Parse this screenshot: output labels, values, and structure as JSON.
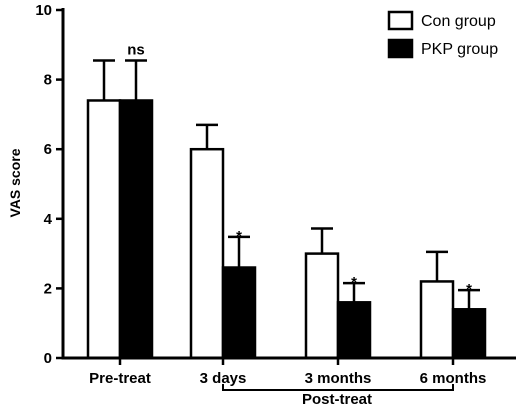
{
  "chart_data": {
    "type": "bar",
    "categories": [
      "Pre-treat",
      "3 days",
      "3 months",
      "6 months"
    ],
    "series": [
      {
        "name": "Con group",
        "fill": "#ffffff",
        "values": [
          7.4,
          6.0,
          3.0,
          2.2
        ],
        "errors": [
          1.15,
          0.7,
          0.72,
          0.85
        ]
      },
      {
        "name": "PKP group",
        "fill": "#000000",
        "values": [
          7.4,
          2.6,
          1.6,
          1.4
        ],
        "errors": [
          1.15,
          0.88,
          0.55,
          0.55
        ]
      }
    ],
    "significance": [
      "ns",
      "*",
      "*",
      "*"
    ],
    "ylabel": "VAS score",
    "xlabel": "",
    "group_label": "Post-treat",
    "ylim": [
      0,
      10
    ],
    "yticks": [
      0,
      2,
      4,
      6,
      8,
      10
    ],
    "legend": "top-right"
  }
}
